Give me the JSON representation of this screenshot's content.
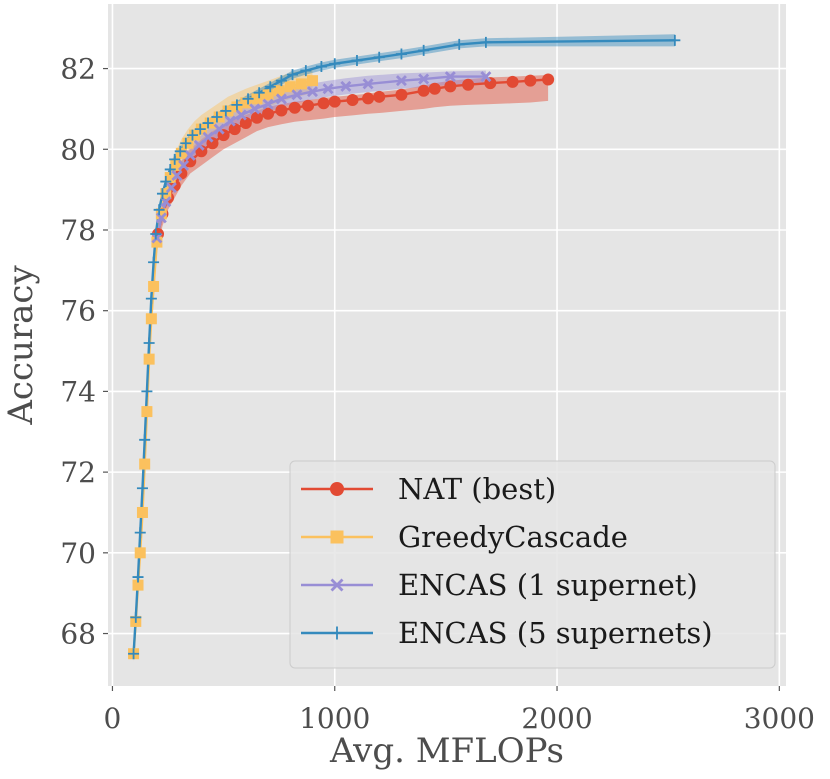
{
  "chart_data": {
    "type": "line",
    "title": "",
    "xlabel": "Avg. MFLOPs",
    "ylabel": "Accuracy",
    "xlim": [
      -20,
      3030
    ],
    "ylim": [
      66.7,
      83.6
    ],
    "xticks": [
      0,
      1000,
      2000,
      3000
    ],
    "yticks": [
      68,
      70,
      72,
      74,
      76,
      78,
      80,
      82
    ],
    "xtick_labels": [
      "0",
      "1000",
      "2000",
      "3000"
    ],
    "ytick_labels": [
      "68",
      "70",
      "72",
      "74",
      "76",
      "78",
      "80",
      "82"
    ],
    "grid": true,
    "background": "#e5e5e5",
    "legend_position": "lower-right",
    "series": [
      {
        "name": "NAT (best)",
        "color": "#e24a33",
        "marker": "circle",
        "x": [
          205,
          225,
          250,
          280,
          310,
          350,
          400,
          450,
          500,
          550,
          600,
          650,
          700,
          760,
          820,
          880,
          950,
          1000,
          1080,
          1150,
          1200,
          1300,
          1400,
          1450,
          1520,
          1600,
          1700,
          1800,
          1880,
          1960
        ],
        "y": [
          77.9,
          78.4,
          78.8,
          79.1,
          79.4,
          79.7,
          79.95,
          80.15,
          80.35,
          80.5,
          80.65,
          80.78,
          80.88,
          80.96,
          81.03,
          81.08,
          81.14,
          81.18,
          81.22,
          81.26,
          81.3,
          81.35,
          81.45,
          81.5,
          81.56,
          81.6,
          81.64,
          81.67,
          81.7,
          81.73
        ],
        "band_lower": [
          77.6,
          78.1,
          78.5,
          78.8,
          79.1,
          79.4,
          79.6,
          79.8,
          80.0,
          80.15,
          80.3,
          80.45,
          80.55,
          80.62,
          80.68,
          80.72,
          80.76,
          80.8,
          80.84,
          80.88,
          80.9,
          80.95,
          81.0,
          81.04,
          81.08,
          81.1,
          81.12,
          81.14,
          81.16,
          81.2
        ],
        "band_upper": [
          78.2,
          78.7,
          79.1,
          79.4,
          79.7,
          80.0,
          80.25,
          80.45,
          80.6,
          80.75,
          80.85,
          80.95,
          81.05,
          81.12,
          81.18,
          81.22,
          81.27,
          81.3,
          81.34,
          81.38,
          81.42,
          81.48,
          81.58,
          81.64,
          81.7,
          81.74,
          81.78,
          81.8,
          81.82,
          81.84
        ]
      },
      {
        "name": "GreedyCascade",
        "color": "#fbc15e",
        "marker": "square",
        "x": [
          95,
          105,
          115,
          125,
          135,
          145,
          155,
          165,
          175,
          185,
          200,
          220,
          240,
          260,
          285,
          310,
          340,
          370,
          400,
          440,
          480,
          520,
          560,
          600,
          650,
          700,
          750,
          800,
          850,
          900
        ],
        "y": [
          67.5,
          68.3,
          69.2,
          70.0,
          71.0,
          72.2,
          73.5,
          74.8,
          75.8,
          76.6,
          77.7,
          78.4,
          78.9,
          79.3,
          79.6,
          79.9,
          80.15,
          80.35,
          80.5,
          80.65,
          80.8,
          80.95,
          81.05,
          81.15,
          81.25,
          81.35,
          81.45,
          81.55,
          81.62,
          81.7
        ],
        "band_lower": [
          67.3,
          68.0,
          68.9,
          69.7,
          70.6,
          71.8,
          73.1,
          74.4,
          75.4,
          76.2,
          77.4,
          78.1,
          78.6,
          79.0,
          79.3,
          79.6,
          79.85,
          80.05,
          80.2,
          80.35,
          80.5,
          80.65,
          80.75,
          80.85,
          80.95,
          81.05,
          81.15,
          81.25,
          81.32,
          81.4
        ],
        "band_upper": [
          67.8,
          68.8,
          69.7,
          70.5,
          71.5,
          72.7,
          74.0,
          75.3,
          76.3,
          77.1,
          78.1,
          78.8,
          79.25,
          79.65,
          79.95,
          80.25,
          80.5,
          80.7,
          80.85,
          81.0,
          81.15,
          81.3,
          81.4,
          81.5,
          81.6,
          81.7,
          81.8,
          81.9,
          81.95,
          82.0
        ]
      },
      {
        "name": "ENCAS (1 supernet)",
        "color": "#988ed5",
        "marker": "x",
        "x": [
          200,
          220,
          240,
          265,
          290,
          320,
          350,
          390,
          430,
          480,
          530,
          580,
          640,
          700,
          760,
          830,
          900,
          970,
          1050,
          1150,
          1300,
          1400,
          1520,
          1680
        ],
        "y": [
          77.8,
          78.3,
          78.7,
          79.05,
          79.35,
          79.6,
          79.85,
          80.1,
          80.3,
          80.5,
          80.7,
          80.85,
          81.0,
          81.12,
          81.25,
          81.35,
          81.43,
          81.5,
          81.56,
          81.62,
          81.7,
          81.74,
          81.8,
          81.8
        ],
        "band_lower": [
          77.6,
          78.1,
          78.5,
          78.85,
          79.15,
          79.4,
          79.65,
          79.9,
          80.1,
          80.3,
          80.5,
          80.65,
          80.8,
          80.92,
          81.05,
          81.15,
          81.23,
          81.3,
          81.36,
          81.42,
          81.5,
          81.54,
          81.6,
          81.65
        ],
        "band_upper": [
          78.0,
          78.5,
          78.9,
          79.25,
          79.55,
          79.8,
          80.05,
          80.3,
          80.5,
          80.7,
          80.9,
          81.05,
          81.2,
          81.32,
          81.45,
          81.55,
          81.63,
          81.7,
          81.76,
          81.82,
          81.88,
          81.9,
          81.93,
          81.95
        ]
      },
      {
        "name": "ENCAS (5 supernets)",
        "color": "#348abd",
        "marker": "plus",
        "x": [
          95,
          105,
          115,
          125,
          135,
          145,
          155,
          165,
          175,
          185,
          195,
          210,
          225,
          240,
          260,
          280,
          305,
          330,
          360,
          395,
          430,
          470,
          510,
          560,
          610,
          660,
          710,
          760,
          810,
          870,
          940,
          1000,
          1100,
          1200,
          1300,
          1400,
          1560,
          1680,
          2530
        ],
        "y": [
          67.5,
          68.4,
          69.4,
          70.5,
          71.6,
          72.8,
          74.0,
          75.2,
          76.3,
          77.2,
          77.9,
          78.5,
          78.9,
          79.2,
          79.5,
          79.75,
          79.95,
          80.15,
          80.35,
          80.5,
          80.65,
          80.8,
          80.95,
          81.1,
          81.25,
          81.4,
          81.55,
          81.7,
          81.85,
          81.95,
          82.05,
          82.12,
          82.2,
          82.28,
          82.36,
          82.45,
          82.6,
          82.65,
          82.7
        ],
        "band_lower": [
          67.4,
          68.3,
          69.3,
          70.4,
          71.5,
          72.7,
          73.9,
          75.1,
          76.2,
          77.1,
          77.8,
          78.4,
          78.8,
          79.1,
          79.4,
          79.65,
          79.85,
          80.05,
          80.25,
          80.4,
          80.55,
          80.7,
          80.85,
          81.0,
          81.15,
          81.3,
          81.45,
          81.6,
          81.75,
          81.85,
          81.95,
          82.02,
          82.1,
          82.18,
          82.26,
          82.35,
          82.5,
          82.55,
          82.55
        ],
        "band_upper": [
          67.6,
          68.5,
          69.5,
          70.6,
          71.7,
          72.9,
          74.1,
          75.3,
          76.4,
          77.3,
          78.0,
          78.6,
          79.0,
          79.3,
          79.6,
          79.85,
          80.05,
          80.25,
          80.45,
          80.6,
          80.75,
          80.9,
          81.05,
          81.2,
          81.35,
          81.5,
          81.65,
          81.8,
          81.95,
          82.05,
          82.15,
          82.22,
          82.3,
          82.38,
          82.46,
          82.55,
          82.7,
          82.75,
          82.85
        ]
      }
    ]
  }
}
